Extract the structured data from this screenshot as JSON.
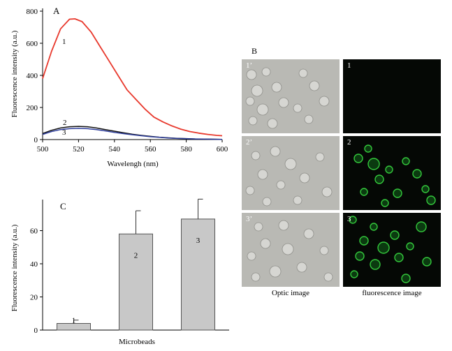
{
  "colors": {
    "curve1": "#e8382c",
    "curve2": "#111111",
    "curve3": "#2e3e9c",
    "bar_fill": "#c8c8c8",
    "optic_bg": "#b9b9b4",
    "fluor_bg": "#050805",
    "bead_glow": "#34c83c"
  },
  "chart_data": [
    {
      "type": "line",
      "panel_label": "A",
      "xlabel": "Wavelengh (nm)",
      "ylabel": "Fluorescence intensity (a.u.)",
      "xlim": [
        500,
        600
      ],
      "ylim": [
        0,
        800
      ],
      "xticks": [
        "500",
        "520",
        "540",
        "560",
        "580",
        "600"
      ],
      "yticks": [
        "0",
        "200",
        "400",
        "600",
        "800"
      ],
      "grid": false,
      "series": [
        {
          "name": "1",
          "color": "#e8382c",
          "x": [
            500,
            505,
            510,
            515,
            518,
            522,
            527,
            532,
            537,
            542,
            547,
            552,
            557,
            562,
            567,
            572,
            577,
            582,
            587,
            592,
            597,
            600
          ],
          "y": [
            380,
            550,
            690,
            750,
            752,
            735,
            670,
            580,
            490,
            400,
            310,
            250,
            190,
            140,
            110,
            85,
            65,
            50,
            40,
            32,
            26,
            24
          ]
        },
        {
          "name": "2",
          "color": "#111111",
          "x": [
            500,
            505,
            510,
            515,
            520,
            525,
            530,
            535,
            540,
            545,
            550,
            555,
            560,
            565,
            570,
            575,
            580,
            585,
            590,
            595,
            600
          ],
          "y": [
            38,
            58,
            72,
            80,
            82,
            80,
            72,
            62,
            52,
            42,
            33,
            26,
            20,
            15,
            11,
            8,
            6,
            4,
            3,
            2,
            1
          ]
        },
        {
          "name": "3",
          "color": "#2e3e9c",
          "x": [
            500,
            505,
            510,
            515,
            520,
            525,
            530,
            535,
            540,
            545,
            550,
            555,
            560,
            565,
            570,
            575,
            580,
            585,
            590,
            595,
            600
          ],
          "y": [
            32,
            50,
            62,
            68,
            70,
            68,
            62,
            54,
            45,
            37,
            30,
            24,
            18,
            14,
            10,
            7,
            5,
            4,
            3,
            2,
            1
          ]
        }
      ],
      "curve_labels": [
        "1",
        "2",
        "3"
      ]
    },
    {
      "type": "bar",
      "panel_label": "C",
      "xlabel": "Microbeads",
      "ylabel": "Fluorescence intensity (a.u.)",
      "ylim": [
        0,
        80
      ],
      "yticks": [
        "0",
        "20",
        "40",
        "60"
      ],
      "categories": [
        "1",
        "2",
        "3"
      ],
      "values": [
        4,
        58,
        67
      ],
      "errors": [
        2,
        14,
        12
      ],
      "grid": false
    }
  ],
  "panel_b": {
    "label": "B",
    "rows": [
      {
        "optic_label": "1’",
        "fluor_label": "1"
      },
      {
        "optic_label": "2’",
        "fluor_label": "2"
      },
      {
        "optic_label": "3’",
        "fluor_label": "3"
      }
    ],
    "optic_caption": "Optic image",
    "fluor_caption": "fluorescence image"
  }
}
